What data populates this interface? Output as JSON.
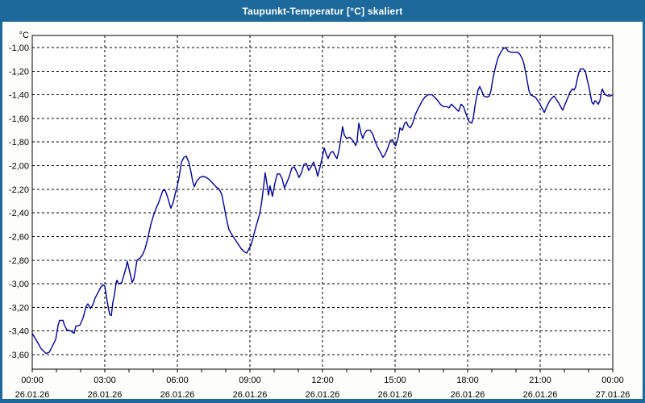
{
  "window": {
    "title": "Taupunkt-Temperatur [°C] skaliert"
  },
  "colors": {
    "titlebar_bg": "#1d699c",
    "titlebar_text": "#ffffff",
    "window_border": "#1d699c",
    "content_bg": "#fdfdfb",
    "plot_bg": "#ffffff",
    "plot_border": "#000000",
    "gridline": "#000000",
    "label_text": "#000000",
    "series_line": "#0000a0"
  },
  "chart_data": {
    "type": "line",
    "title": "Taupunkt-Temperatur [°C] skaliert",
    "ylabel": "°C",
    "xlabel": "",
    "grid": "dashed",
    "legend": "none",
    "xlim_hours": [
      0,
      24
    ],
    "ylim": [
      -3.6,
      -1.0
    ],
    "ytick_step": 0.2,
    "minor_x_tick_every_hours": 1,
    "y_ticks": [
      {
        "value": -1.0,
        "label": "-1,00"
      },
      {
        "value": -1.2,
        "label": "-1,20"
      },
      {
        "value": -1.4,
        "label": "-1,40"
      },
      {
        "value": -1.6,
        "label": "-1,60"
      },
      {
        "value": -1.8,
        "label": "-1,80"
      },
      {
        "value": -2.0,
        "label": "-2,00"
      },
      {
        "value": -2.2,
        "label": "-2,20"
      },
      {
        "value": -2.4,
        "label": "-2,40"
      },
      {
        "value": -2.6,
        "label": "-2,60"
      },
      {
        "value": -2.8,
        "label": "-2,80"
      },
      {
        "value": -3.0,
        "label": "-3,00"
      },
      {
        "value": -3.2,
        "label": "-3,20"
      },
      {
        "value": -3.4,
        "label": "-3,40"
      },
      {
        "value": -3.6,
        "label": "-3,60"
      }
    ],
    "x_ticks": [
      {
        "hour": 0,
        "time": "00:00",
        "date": "26.01.26"
      },
      {
        "hour": 3,
        "time": "03:00",
        "date": "26.01.26"
      },
      {
        "hour": 6,
        "time": "06:00",
        "date": "26.01.26"
      },
      {
        "hour": 9,
        "time": "09:00",
        "date": "26.01.26"
      },
      {
        "hour": 12,
        "time": "12:00",
        "date": "26.01.26"
      },
      {
        "hour": 15,
        "time": "15:00",
        "date": "26.01.26"
      },
      {
        "hour": 18,
        "time": "18:00",
        "date": "26.01.26"
      },
      {
        "hour": 21,
        "time": "21:00",
        "date": "26.01.26"
      },
      {
        "hour": 24,
        "time": "00:00",
        "date": "27.01.26"
      }
    ],
    "series": [
      {
        "name": "Taupunkt-Temperatur skaliert",
        "color": "#0000a0",
        "points_hours_degC": [
          [
            0,
            -3.42
          ],
          [
            0.2,
            -3.49
          ],
          [
            0.37,
            -3.55
          ],
          [
            0.57,
            -3.59
          ],
          [
            0.7,
            -3.58
          ],
          [
            0.83,
            -3.53
          ],
          [
            0.97,
            -3.47
          ],
          [
            1.07,
            -3.35
          ],
          [
            1.13,
            -3.31
          ],
          [
            1.27,
            -3.31
          ],
          [
            1.33,
            -3.35
          ],
          [
            1.43,
            -3.39
          ],
          [
            1.6,
            -3.4
          ],
          [
            1.73,
            -3.42
          ],
          [
            1.8,
            -3.36
          ],
          [
            1.97,
            -3.35
          ],
          [
            2.1,
            -3.29
          ],
          [
            2.23,
            -3.19
          ],
          [
            2.3,
            -3.17
          ],
          [
            2.4,
            -3.21
          ],
          [
            2.5,
            -3.18
          ],
          [
            2.6,
            -3.12
          ],
          [
            2.73,
            -3.07
          ],
          [
            2.83,
            -3.03
          ],
          [
            2.93,
            -3.01
          ],
          [
            3,
            -3.02
          ],
          [
            3.1,
            -3.15
          ],
          [
            3.2,
            -3.26
          ],
          [
            3.27,
            -3.27
          ],
          [
            3.33,
            -3.16
          ],
          [
            3.4,
            -3.09
          ],
          [
            3.47,
            -2.99
          ],
          [
            3.5,
            -2.97
          ],
          [
            3.57,
            -3.0
          ],
          [
            3.7,
            -2.99
          ],
          [
            3.77,
            -2.94
          ],
          [
            3.87,
            -2.87
          ],
          [
            3.93,
            -2.81
          ],
          [
            4.03,
            -2.9
          ],
          [
            4.13,
            -2.99
          ],
          [
            4.2,
            -2.96
          ],
          [
            4.27,
            -2.88
          ],
          [
            4.33,
            -2.8
          ],
          [
            4.47,
            -2.78
          ],
          [
            4.57,
            -2.75
          ],
          [
            4.67,
            -2.7
          ],
          [
            4.77,
            -2.62
          ],
          [
            4.9,
            -2.5
          ],
          [
            5,
            -2.43
          ],
          [
            5.1,
            -2.37
          ],
          [
            5.23,
            -2.31
          ],
          [
            5.33,
            -2.25
          ],
          [
            5.4,
            -2.21
          ],
          [
            5.5,
            -2.21
          ],
          [
            5.6,
            -2.27
          ],
          [
            5.73,
            -2.36
          ],
          [
            5.83,
            -2.31
          ],
          [
            5.93,
            -2.22
          ],
          [
            6,
            -2.17
          ],
          [
            6.07,
            -2.1
          ],
          [
            6.17,
            -1.97
          ],
          [
            6.27,
            -1.93
          ],
          [
            6.37,
            -1.92
          ],
          [
            6.47,
            -1.97
          ],
          [
            6.57,
            -2.06
          ],
          [
            6.63,
            -2.13
          ],
          [
            6.7,
            -2.18
          ],
          [
            6.8,
            -2.13
          ],
          [
            6.93,
            -2.1
          ],
          [
            7.07,
            -2.09
          ],
          [
            7.2,
            -2.1
          ],
          [
            7.33,
            -2.12
          ],
          [
            7.47,
            -2.15
          ],
          [
            7.6,
            -2.18
          ],
          [
            7.73,
            -2.2
          ],
          [
            7.83,
            -2.24
          ],
          [
            7.93,
            -2.34
          ],
          [
            8.03,
            -2.45
          ],
          [
            8.13,
            -2.54
          ],
          [
            8.27,
            -2.59
          ],
          [
            8.37,
            -2.62
          ],
          [
            8.5,
            -2.66
          ],
          [
            8.63,
            -2.7
          ],
          [
            8.77,
            -2.73
          ],
          [
            8.87,
            -2.74
          ],
          [
            8.97,
            -2.7
          ],
          [
            9.03,
            -2.68
          ],
          [
            9.13,
            -2.61
          ],
          [
            9.23,
            -2.53
          ],
          [
            9.33,
            -2.46
          ],
          [
            9.4,
            -2.41
          ],
          [
            9.47,
            -2.33
          ],
          [
            9.57,
            -2.17
          ],
          [
            9.63,
            -2.06
          ],
          [
            9.7,
            -2.15
          ],
          [
            9.77,
            -2.25
          ],
          [
            9.83,
            -2.17
          ],
          [
            9.93,
            -2.26
          ],
          [
            10.03,
            -2.15
          ],
          [
            10.13,
            -2.07
          ],
          [
            10.23,
            -2.07
          ],
          [
            10.33,
            -2.11
          ],
          [
            10.43,
            -2.19
          ],
          [
            10.53,
            -2.14
          ],
          [
            10.63,
            -2.09
          ],
          [
            10.73,
            -2.02
          ],
          [
            10.83,
            -2.01
          ],
          [
            10.93,
            -2.05
          ],
          [
            11.03,
            -2.1
          ],
          [
            11.13,
            -2.06
          ],
          [
            11.23,
            -1.99
          ],
          [
            11.33,
            -1.98
          ],
          [
            11.43,
            -2.04
          ],
          [
            11.53,
            -2.01
          ],
          [
            11.63,
            -1.97
          ],
          [
            11.73,
            -2.03
          ],
          [
            11.8,
            -2.09
          ],
          [
            11.9,
            -2.01
          ],
          [
            12,
            -1.92
          ],
          [
            12.07,
            -1.85
          ],
          [
            12.17,
            -1.91
          ],
          [
            12.23,
            -1.94
          ],
          [
            12.33,
            -1.89
          ],
          [
            12.43,
            -1.88
          ],
          [
            12.53,
            -1.92
          ],
          [
            12.6,
            -1.94
          ],
          [
            12.67,
            -1.88
          ],
          [
            12.73,
            -1.81
          ],
          [
            12.83,
            -1.67
          ],
          [
            12.9,
            -1.74
          ],
          [
            13,
            -1.77
          ],
          [
            13.13,
            -1.76
          ],
          [
            13.27,
            -1.79
          ],
          [
            13.37,
            -1.83
          ],
          [
            13.43,
            -1.79
          ],
          [
            13.5,
            -1.64
          ],
          [
            13.6,
            -1.73
          ],
          [
            13.67,
            -1.77
          ],
          [
            13.73,
            -1.73
          ],
          [
            13.83,
            -1.7
          ],
          [
            13.97,
            -1.7
          ],
          [
            14.07,
            -1.73
          ],
          [
            14.17,
            -1.79
          ],
          [
            14.27,
            -1.84
          ],
          [
            14.4,
            -1.89
          ],
          [
            14.5,
            -1.93
          ],
          [
            14.6,
            -1.9
          ],
          [
            14.7,
            -1.85
          ],
          [
            14.8,
            -1.79
          ],
          [
            14.9,
            -1.78
          ],
          [
            14.97,
            -1.82
          ],
          [
            15.03,
            -1.83
          ],
          [
            15.13,
            -1.76
          ],
          [
            15.2,
            -1.68
          ],
          [
            15.3,
            -1.7
          ],
          [
            15.4,
            -1.64
          ],
          [
            15.47,
            -1.63
          ],
          [
            15.53,
            -1.66
          ],
          [
            15.63,
            -1.68
          ],
          [
            15.73,
            -1.64
          ],
          [
            15.83,
            -1.57
          ],
          [
            15.97,
            -1.51
          ],
          [
            16.1,
            -1.46
          ],
          [
            16.23,
            -1.42
          ],
          [
            16.37,
            -1.4
          ],
          [
            16.53,
            -1.4
          ],
          [
            16.63,
            -1.42
          ],
          [
            16.77,
            -1.45
          ],
          [
            16.87,
            -1.48
          ],
          [
            17,
            -1.5
          ],
          [
            17.13,
            -1.5
          ],
          [
            17.23,
            -1.51
          ],
          [
            17.33,
            -1.48
          ],
          [
            17.43,
            -1.5
          ],
          [
            17.53,
            -1.52
          ],
          [
            17.63,
            -1.54
          ],
          [
            17.73,
            -1.48
          ],
          [
            17.83,
            -1.5
          ],
          [
            17.93,
            -1.56
          ],
          [
            18,
            -1.6
          ],
          [
            18.07,
            -1.63
          ],
          [
            18.17,
            -1.64
          ],
          [
            18.23,
            -1.6
          ],
          [
            18.3,
            -1.5
          ],
          [
            18.37,
            -1.42
          ],
          [
            18.43,
            -1.36
          ],
          [
            18.5,
            -1.33
          ],
          [
            18.57,
            -1.36
          ],
          [
            18.67,
            -1.41
          ],
          [
            18.8,
            -1.42
          ],
          [
            18.9,
            -1.41
          ],
          [
            18.97,
            -1.36
          ],
          [
            19.03,
            -1.28
          ],
          [
            19.1,
            -1.21
          ],
          [
            19.17,
            -1.15
          ],
          [
            19.27,
            -1.08
          ],
          [
            19.37,
            -1.04
          ],
          [
            19.47,
            -1.01
          ],
          [
            19.57,
            -1.0
          ],
          [
            19.67,
            -1.03
          ],
          [
            19.8,
            -1.04
          ],
          [
            19.93,
            -1.04
          ],
          [
            20.07,
            -1.04
          ],
          [
            20.17,
            -1.06
          ],
          [
            20.27,
            -1.1
          ],
          [
            20.33,
            -1.14
          ],
          [
            20.4,
            -1.21
          ],
          [
            20.47,
            -1.29
          ],
          [
            20.53,
            -1.36
          ],
          [
            20.6,
            -1.4
          ],
          [
            20.7,
            -1.41
          ],
          [
            20.8,
            -1.42
          ],
          [
            20.9,
            -1.45
          ],
          [
            20.97,
            -1.47
          ],
          [
            21.07,
            -1.51
          ],
          [
            21.17,
            -1.55
          ],
          [
            21.27,
            -1.5
          ],
          [
            21.37,
            -1.46
          ],
          [
            21.47,
            -1.43
          ],
          [
            21.57,
            -1.41
          ],
          [
            21.67,
            -1.44
          ],
          [
            21.77,
            -1.47
          ],
          [
            21.87,
            -1.51
          ],
          [
            21.93,
            -1.53
          ],
          [
            22.03,
            -1.48
          ],
          [
            22.13,
            -1.43
          ],
          [
            22.23,
            -1.38
          ],
          [
            22.33,
            -1.35
          ],
          [
            22.4,
            -1.36
          ],
          [
            22.47,
            -1.33
          ],
          [
            22.53,
            -1.27
          ],
          [
            22.6,
            -1.21
          ],
          [
            22.67,
            -1.18
          ],
          [
            22.77,
            -1.18
          ],
          [
            22.87,
            -1.2
          ],
          [
            22.93,
            -1.26
          ],
          [
            23,
            -1.32
          ],
          [
            23.07,
            -1.39
          ],
          [
            23.13,
            -1.46
          ],
          [
            23.2,
            -1.48
          ],
          [
            23.27,
            -1.45
          ],
          [
            23.33,
            -1.46
          ],
          [
            23.4,
            -1.48
          ],
          [
            23.47,
            -1.45
          ],
          [
            23.53,
            -1.38
          ],
          [
            23.57,
            -1.35
          ],
          [
            23.63,
            -1.38
          ],
          [
            23.7,
            -1.4
          ],
          [
            23.8,
            -1.41
          ],
          [
            23.9,
            -1.41
          ],
          [
            24,
            -1.4
          ]
        ]
      }
    ]
  }
}
